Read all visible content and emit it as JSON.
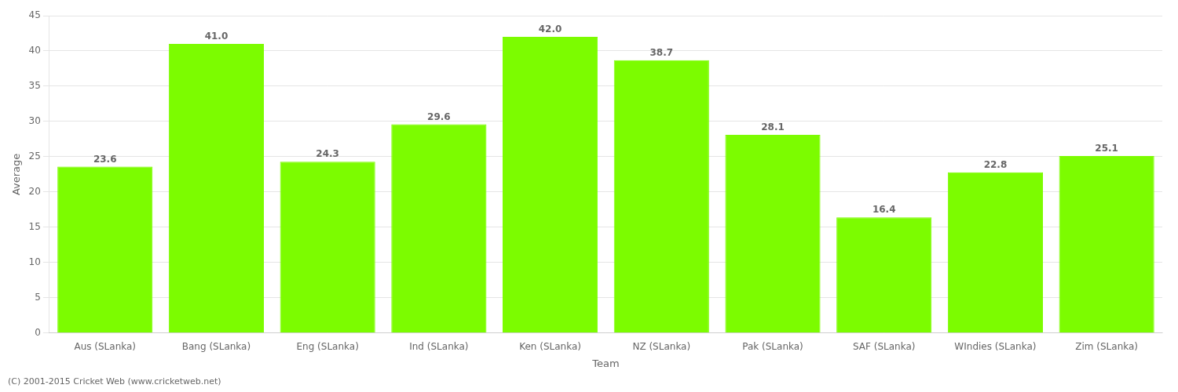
{
  "chart_data": {
    "type": "bar",
    "categories": [
      "Aus (SLanka)",
      "Bang (SLanka)",
      "Eng (SLanka)",
      "Ind (SLanka)",
      "Ken (SLanka)",
      "NZ (SLanka)",
      "Pak (SLanka)",
      "SAF (SLanka)",
      "WIndies (SLanka)",
      "Zim (SLanka)"
    ],
    "values": [
      23.6,
      41.0,
      24.3,
      29.6,
      42.0,
      38.7,
      28.1,
      16.4,
      22.8,
      25.1
    ],
    "value_labels": [
      "23.6",
      "41.0",
      "24.3",
      "29.6",
      "42.0",
      "38.7",
      "28.1",
      "16.4",
      "22.8",
      "25.1"
    ],
    "data_labels": true,
    "color": "#7CFC00",
    "xlabel": "Team",
    "ylabel": "Average",
    "ylim": [
      0,
      45
    ],
    "yticks": [
      0,
      5,
      10,
      15,
      20,
      25,
      30,
      35,
      40,
      45
    ],
    "grid": true,
    "annotations": [
      "(C) 2001-2015 Cricket Web (www.cricketweb.net)"
    ]
  }
}
